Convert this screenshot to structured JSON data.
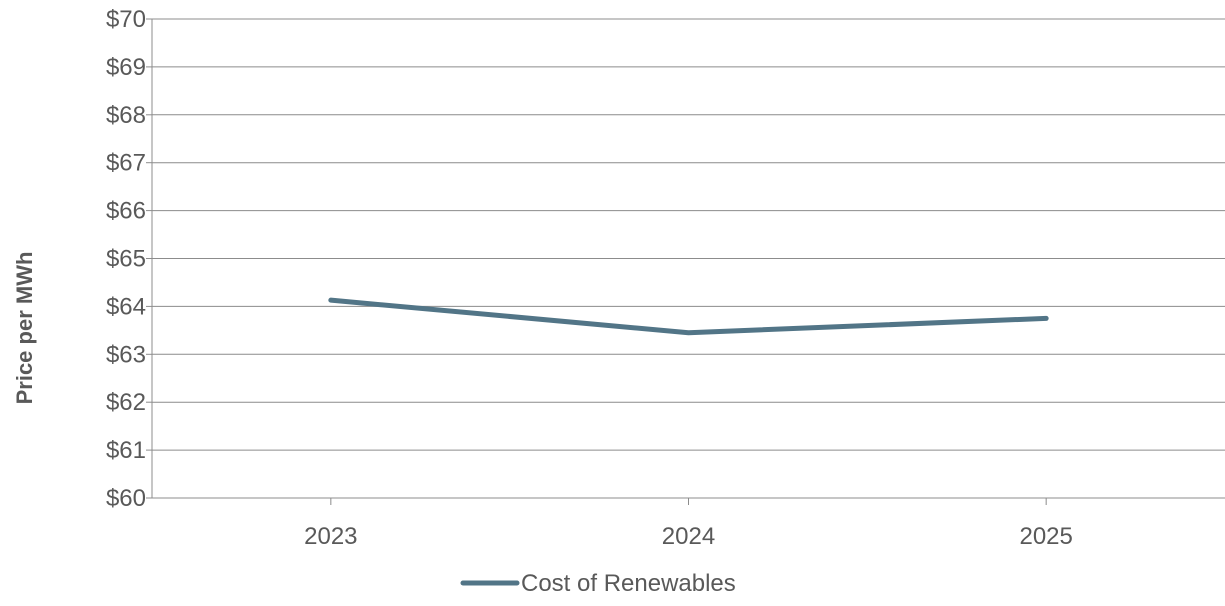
{
  "chart_data": {
    "type": "line",
    "title": "",
    "xlabel": "",
    "ylabel": "Price per MWh",
    "categories": [
      "2023",
      "2024",
      "2025"
    ],
    "series": [
      {
        "name": "Cost of Renewables",
        "values": [
          64.13,
          63.45,
          63.75
        ],
        "color": "#527587"
      }
    ],
    "ylim": [
      60,
      70
    ],
    "ytick_step": 1,
    "ytick_labels": [
      "$60",
      "$61",
      "$62",
      "$63",
      "$64",
      "$65",
      "$66",
      "$67",
      "$68",
      "$69",
      "$70"
    ],
    "grid": true,
    "legend": "bottom-center",
    "colors": {
      "grid": "#8c8c8c",
      "axis": "#8c8c8c",
      "text": "#595959"
    }
  }
}
